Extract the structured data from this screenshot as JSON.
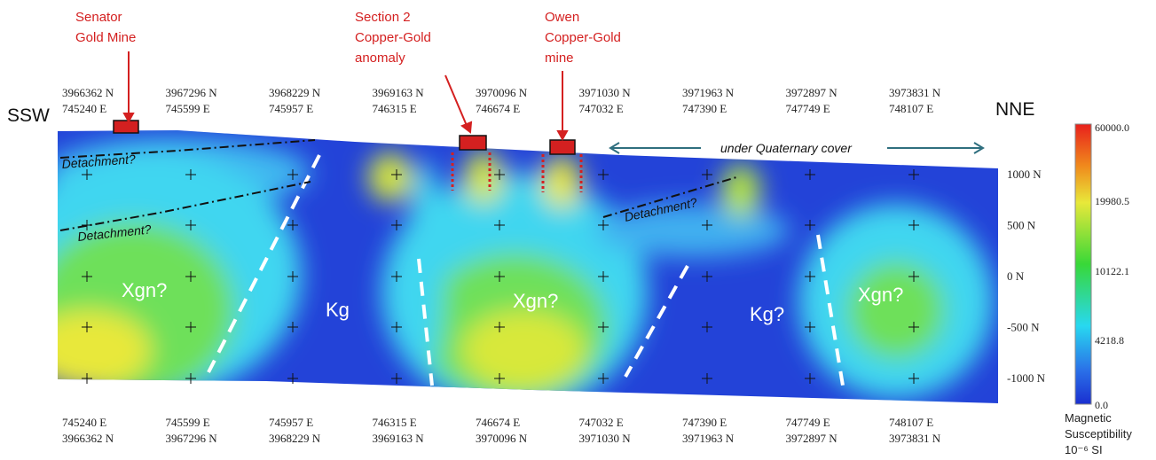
{
  "annotations": [
    {
      "lines": [
        "Senator",
        "Gold Mine"
      ]
    },
    {
      "lines": [
        "Section 2",
        "Copper-Gold",
        "anomaly"
      ]
    },
    {
      "lines": [
        "Owen",
        "Copper-Gold",
        "mine"
      ]
    }
  ],
  "direction": {
    "left": "SSW",
    "right": "NNE"
  },
  "top_axis": [
    [
      "3966362 N",
      "745240 E"
    ],
    [
      "3967296 N",
      "745599 E"
    ],
    [
      "3968229 N",
      "745957 E"
    ],
    [
      "3969163 N",
      "746315 E"
    ],
    [
      "3970096 N",
      "746674 E"
    ],
    [
      "3971030 N",
      "747032 E"
    ],
    [
      "3971963 N",
      "747390 E"
    ],
    [
      "3972897 N",
      "747749 E"
    ],
    [
      "3973831 N",
      "748107 E"
    ]
  ],
  "bottom_axis": [
    [
      "745240 E",
      "3966362 N"
    ],
    [
      "745599 E",
      "3967296 N"
    ],
    [
      "745957 E",
      "3968229 N"
    ],
    [
      "746315 E",
      "3969163 N"
    ],
    [
      "746674 E",
      "3970096 N"
    ],
    [
      "747032 E",
      "3971030 N"
    ],
    [
      "747390 E",
      "3971963 N"
    ],
    [
      "747749 E",
      "3972897 N"
    ],
    [
      "748107 E",
      "3973831 N"
    ]
  ],
  "elevation_labels": [
    "1000 N",
    "500 N",
    "0 N",
    "-500 N",
    "-1000 N"
  ],
  "cover_label": "under Quaternary cover",
  "detachment_labels": [
    "Detachment?",
    "Detachment?",
    "Detachment?"
  ],
  "unit_labels": [
    "Xgn?",
    "Kg",
    "Xgn?",
    "Kg?",
    "Xgn?"
  ],
  "colorbar": {
    "labels": [
      "60000.0",
      "19980.5",
      "10122.1",
      "4218.8",
      "0.0"
    ],
    "title_lines": [
      "Magnetic",
      "Susceptibility"
    ],
    "unit": "10⁻⁶ SI"
  }
}
